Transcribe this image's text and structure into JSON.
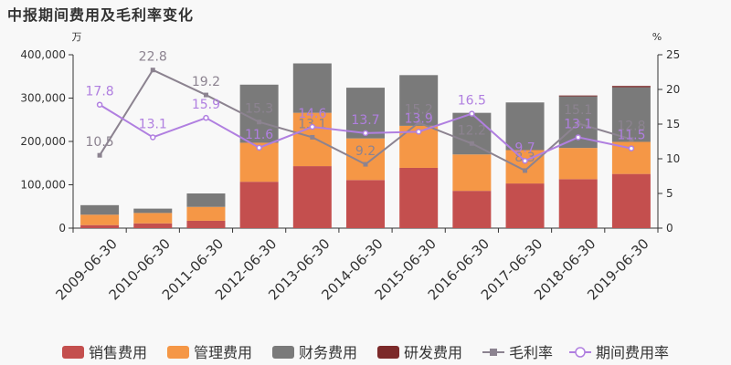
{
  "chart_data": {
    "type": "bar",
    "title": "中报期间费用及毛利率变化",
    "left_unit": "万",
    "right_unit": "%",
    "categories": [
      "2009-06-30",
      "2010-06-30",
      "2011-06-30",
      "2012-06-30",
      "2013-06-30",
      "2014-06-30",
      "2015-06-30",
      "2016-06-30",
      "2017-06-30",
      "2018-06-30",
      "2019-06-30"
    ],
    "left_axis": {
      "min": 0,
      "max": 400000,
      "ticks": [
        "0",
        "100,000",
        "200,000",
        "300,000",
        "400,000"
      ]
    },
    "right_axis": {
      "min": 0,
      "max": 25,
      "ticks": [
        "0",
        "5",
        "10",
        "15",
        "20",
        "25"
      ]
    },
    "bar_series": [
      {
        "name": "销售费用",
        "color": "#c44f4e",
        "values": [
          7000,
          11000,
          17000,
          107000,
          143000,
          111000,
          139000,
          86000,
          103000,
          113000,
          125000
        ]
      },
      {
        "name": "管理费用",
        "color": "#f59746",
        "values": [
          24000,
          24000,
          32000,
          90000,
          123000,
          96000,
          97000,
          84000,
          77000,
          72000,
          74000
        ]
      },
      {
        "name": "财务费用",
        "color": "#7a7a7a",
        "values": [
          22000,
          10000,
          31000,
          134000,
          114000,
          117000,
          117000,
          96000,
          110000,
          119000,
          126000
        ]
      },
      {
        "name": "研发费用",
        "color": "#7c2a2a",
        "values": [
          0,
          0,
          0,
          0,
          0,
          0,
          0,
          0,
          0,
          2000,
          3000
        ]
      }
    ],
    "line_series": [
      {
        "name": "毛利率",
        "color": "#8c8390",
        "marker": "square",
        "values": [
          10.5,
          22.8,
          19.2,
          15.3,
          13.1,
          9.2,
          15.2,
          12.2,
          8.3,
          15.1,
          12.8
        ],
        "labels": [
          "10.5",
          "22.8",
          "19.2",
          "15.3",
          "13.1",
          "9.2",
          "15.2",
          "12.2",
          "8.3",
          "15.1",
          "12.8"
        ]
      },
      {
        "name": "期间费用率",
        "color": "#b07fe0",
        "marker": "circle",
        "values": [
          17.8,
          13.1,
          15.9,
          11.6,
          14.6,
          13.7,
          13.9,
          16.5,
          9.7,
          13.1,
          11.5
        ],
        "labels": [
          "17.8",
          "13.1",
          "15.9",
          "11.6",
          "14.6",
          "13.7",
          "13.9",
          "16.5",
          "9.7",
          "13.1",
          "11.5"
        ]
      }
    ]
  }
}
